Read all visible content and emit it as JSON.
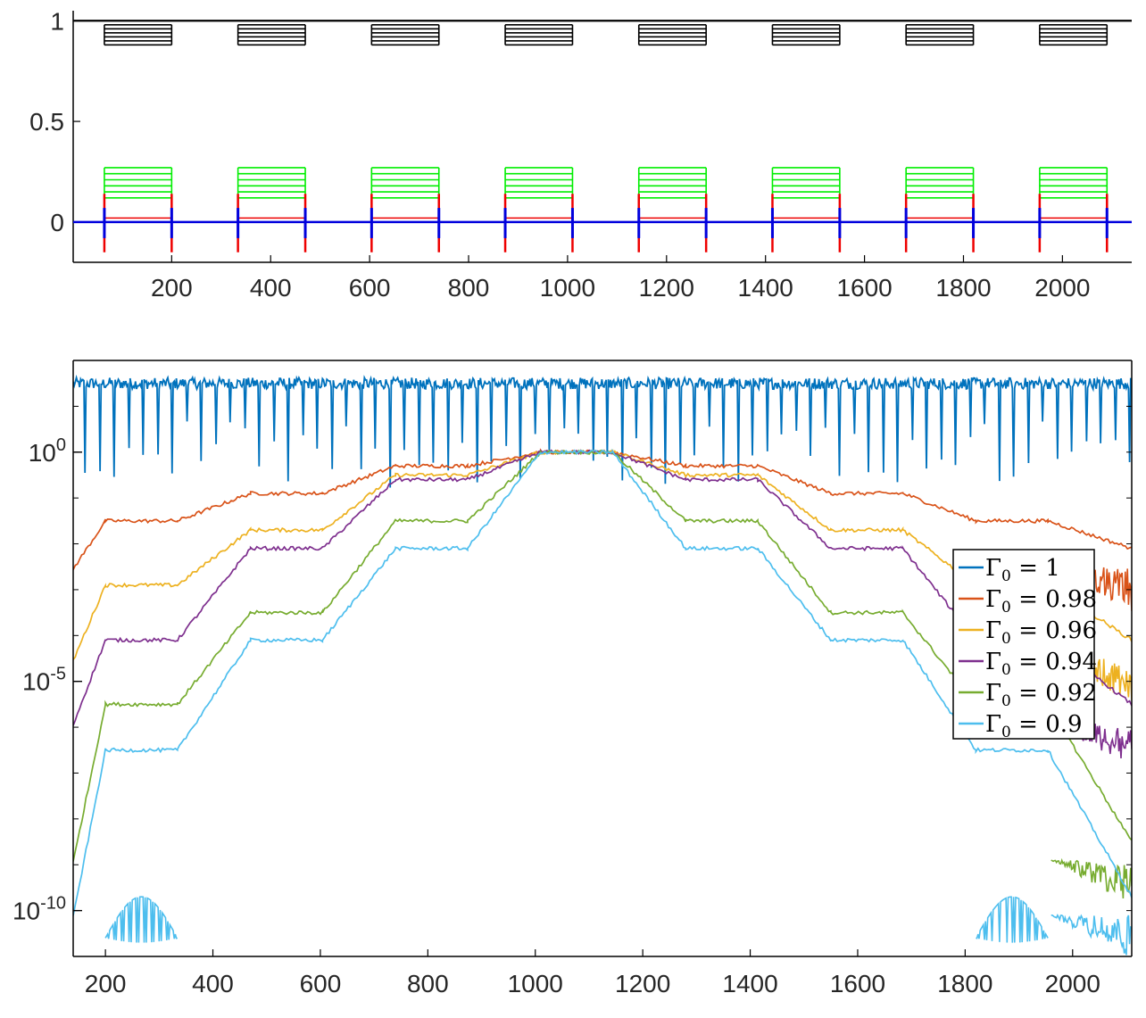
{
  "colors": {
    "axis": "#000000",
    "top_black": "#000000",
    "top_green": "#00ee00",
    "top_red": "#ee0000",
    "top_blue": "#0000dd",
    "gamma_1": "#0072bd",
    "gamma_098": "#d95319",
    "gamma_096": "#edb120",
    "gamma_094": "#7e2f8e",
    "gamma_092": "#77ac30",
    "gamma_09": "#4dbeee"
  },
  "chart_data": [
    {
      "type": "line",
      "panel": "top",
      "xlim": [
        1,
        2140
      ],
      "ylim": [
        -0.2,
        1.05
      ],
      "xticks": [
        200,
        400,
        600,
        800,
        1000,
        1200,
        1400,
        1600,
        1800,
        2000
      ],
      "xtick_labels": [
        "200",
        "400",
        "600",
        "800",
        "1000",
        "1200",
        "1400",
        "1600",
        "1800",
        "2000"
      ],
      "yticks": [
        0,
        0.5,
        1
      ],
      "ytick_labels": [
        "0",
        "0.5",
        "1"
      ],
      "grid": false,
      "pulse_windows": [
        [
          64,
          200
        ],
        [
          334,
          470
        ],
        [
          604,
          740
        ],
        [
          874,
          1010
        ],
        [
          1144,
          1280
        ],
        [
          1414,
          1550
        ],
        [
          1684,
          1820
        ],
        [
          1954,
          2090
        ]
      ],
      "baselines": {
        "top_line": 1.0,
        "zero_line": 0.0
      },
      "series": [
        {
          "color_key": "top_black",
          "levels": [
            0.88,
            0.9,
            0.92,
            0.94,
            0.96,
            0.98
          ]
        },
        {
          "color_key": "top_green",
          "levels": [
            0.12,
            0.15,
            0.18,
            0.21,
            0.24,
            0.27
          ]
        },
        {
          "color_key": "top_red",
          "levels": [
            0.0,
            0.02
          ]
        },
        {
          "color_key": "top_blue",
          "levels": [
            0.0
          ]
        }
      ]
    },
    {
      "type": "line",
      "panel": "bottom",
      "yscale": "log",
      "xlim": [
        140,
        2110
      ],
      "ylim": [
        1e-11,
        100
      ],
      "xticks": [
        200,
        400,
        600,
        800,
        1000,
        1200,
        1400,
        1600,
        1800,
        2000
      ],
      "xtick_labels": [
        "200",
        "400",
        "600",
        "800",
        "1000",
        "1200",
        "1400",
        "1600",
        "1800",
        "2000"
      ],
      "yticks": [
        1,
        1e-05,
        1e-10
      ],
      "ytick_labels": [
        {
          "base": "10",
          "exp": "0"
        },
        {
          "base": "10",
          "exp": "-5"
        },
        {
          "base": "10",
          "exp": "-10"
        }
      ],
      "grid": false,
      "legend_placement": "right",
      "plateau_x": [
        [
          200,
          334
        ],
        [
          470,
          604
        ],
        [
          740,
          874
        ],
        [
          1010,
          1144
        ],
        [
          1280,
          1414
        ],
        [
          1550,
          1684
        ],
        [
          1820,
          1954
        ]
      ],
      "series": [
        {
          "name": "Γ0 = 1",
          "legend": {
            "sym": "Γ",
            "sub": "0",
            "rest": " = 1"
          },
          "color_key": "gamma_1",
          "log10_levels": [
            1.5
          ]
        },
        {
          "name": "Γ0 = 0.98",
          "legend": {
            "sym": "Γ",
            "sub": "0",
            "rest": " = 0.98"
          },
          "color_key": "gamma_098",
          "log10_levels": [
            -2.1,
            -1.5,
            -0.9,
            -0.3
          ]
        },
        {
          "name": "Γ0 = 0.96",
          "legend": {
            "sym": "Γ",
            "sub": "0",
            "rest": " = 0.96"
          },
          "color_key": "gamma_096",
          "log10_levels": [
            -4.1,
            -2.9,
            -1.7,
            -0.5
          ]
        },
        {
          "name": "Γ0 = 0.94",
          "legend": {
            "sym": "Γ",
            "sub": "0",
            "rest": " = 0.94"
          },
          "color_key": "gamma_094",
          "log10_levels": [
            -5.5,
            -4.1,
            -2.1,
            -0.6
          ]
        },
        {
          "name": "Γ0 = 0.92",
          "legend": {
            "sym": "Γ",
            "sub": "0",
            "rest": " = 0.92"
          },
          "color_key": "gamma_092",
          "log10_levels": [
            -8.5,
            -5.5,
            -3.5,
            -1.5
          ]
        },
        {
          "name": "Γ0 = 0.9",
          "legend": {
            "sym": "Γ",
            "sub": "0",
            "rest": " = 0.9"
          },
          "color_key": "gamma_09",
          "log10_levels": [
            -9.7,
            -6.5,
            -4.1,
            -2.1
          ]
        }
      ]
    }
  ]
}
